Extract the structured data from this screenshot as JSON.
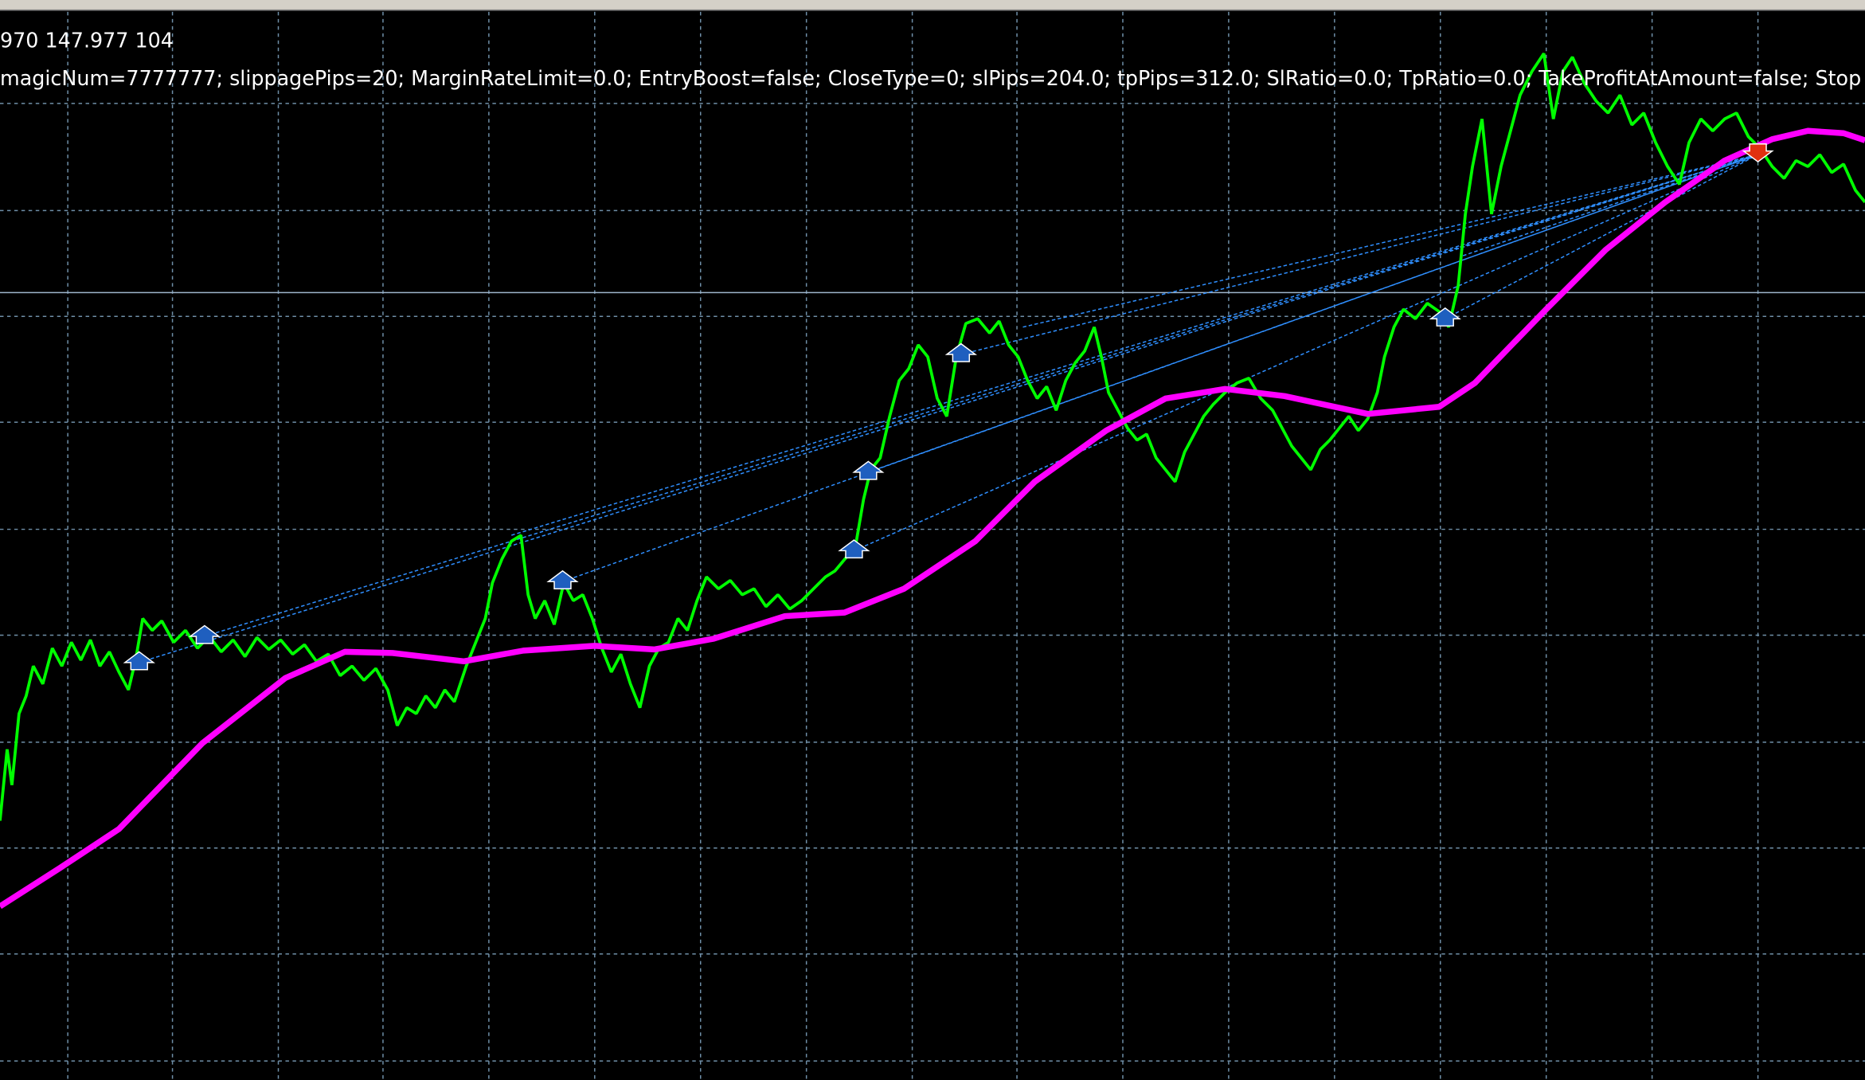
{
  "header": {
    "prices": "970 147.977  104",
    "parameters": "magicNum=7777777; slippagePips=20; MarginRateLimit=0.0; EntryBoost=false; CloseType=0; slPips=204.0; tpPips=312.0; SlRatio=0.0; TpRatio=0.0; TakeProfitAtAmount=false; Stop"
  }
}
